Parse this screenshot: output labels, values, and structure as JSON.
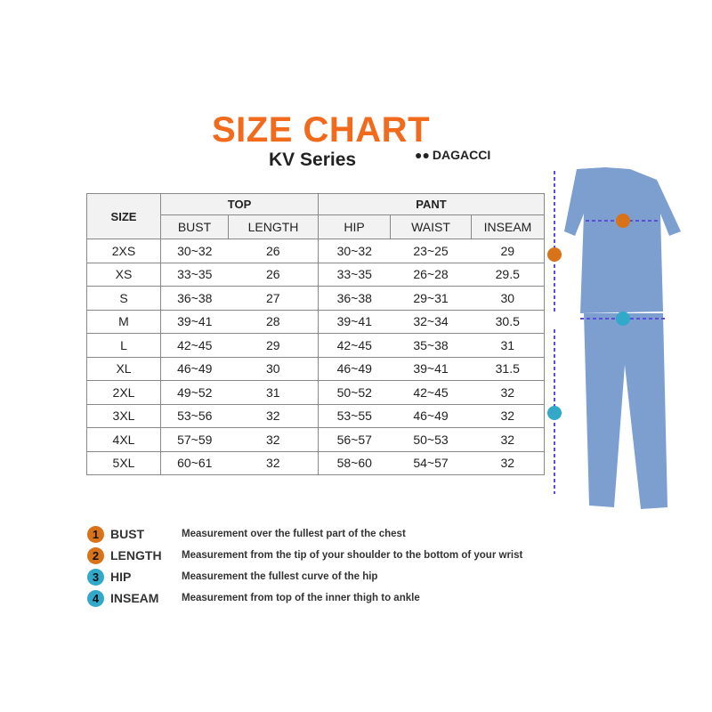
{
  "header": {
    "title": "SIZE CHART",
    "subtitle": "KV Series",
    "brand": "DAGACCI"
  },
  "table": {
    "size_header": "SIZE",
    "top_header": "TOP",
    "pant_header": "PANT",
    "columns": [
      "BUST",
      "LENGTH",
      "HIP",
      "WAIST",
      "INSEAM"
    ],
    "rows": [
      [
        "2XS",
        "30~32",
        "26",
        "30~32",
        "23~25",
        "29"
      ],
      [
        "XS",
        "33~35",
        "26",
        "33~35",
        "26~28",
        "29.5"
      ],
      [
        "S",
        "36~38",
        "27",
        "36~38",
        "29~31",
        "30"
      ],
      [
        "M",
        "39~41",
        "28",
        "39~41",
        "32~34",
        "30.5"
      ],
      [
        "L",
        "42~45",
        "29",
        "42~45",
        "35~38",
        "31"
      ],
      [
        "XL",
        "46~49",
        "30",
        "46~49",
        "39~41",
        "31.5"
      ],
      [
        "2XL",
        "49~52",
        "31",
        "50~52",
        "42~45",
        "32"
      ],
      [
        "3XL",
        "53~56",
        "32",
        "53~55",
        "46~49",
        "32"
      ],
      [
        "4XL",
        "57~59",
        "32",
        "56~57",
        "50~53",
        "32"
      ],
      [
        "5XL",
        "60~61",
        "32",
        "58~60",
        "54~57",
        "32"
      ]
    ]
  },
  "legend": [
    {
      "num": "1",
      "label": "BUST",
      "desc": "Measurement over the fullest part of the chest",
      "color": "#d8731a"
    },
    {
      "num": "2",
      "label": "LENGTH",
      "desc": "Measurement from the tip of your shoulder to the bottom of your wrist",
      "color": "#d8731a"
    },
    {
      "num": "3",
      "label": "HIP",
      "desc": "Measurement the fullest curve of the hip",
      "color": "#33a9c9"
    },
    {
      "num": "4",
      "label": "INSEAM",
      "desc": "Measurement from top of the inner thigh to ankle",
      "color": "#33a9c9"
    }
  ],
  "colors": {
    "title": "#f26a1b",
    "scrubs": "#7c9fd0",
    "arrow": "#5b4fd6"
  }
}
